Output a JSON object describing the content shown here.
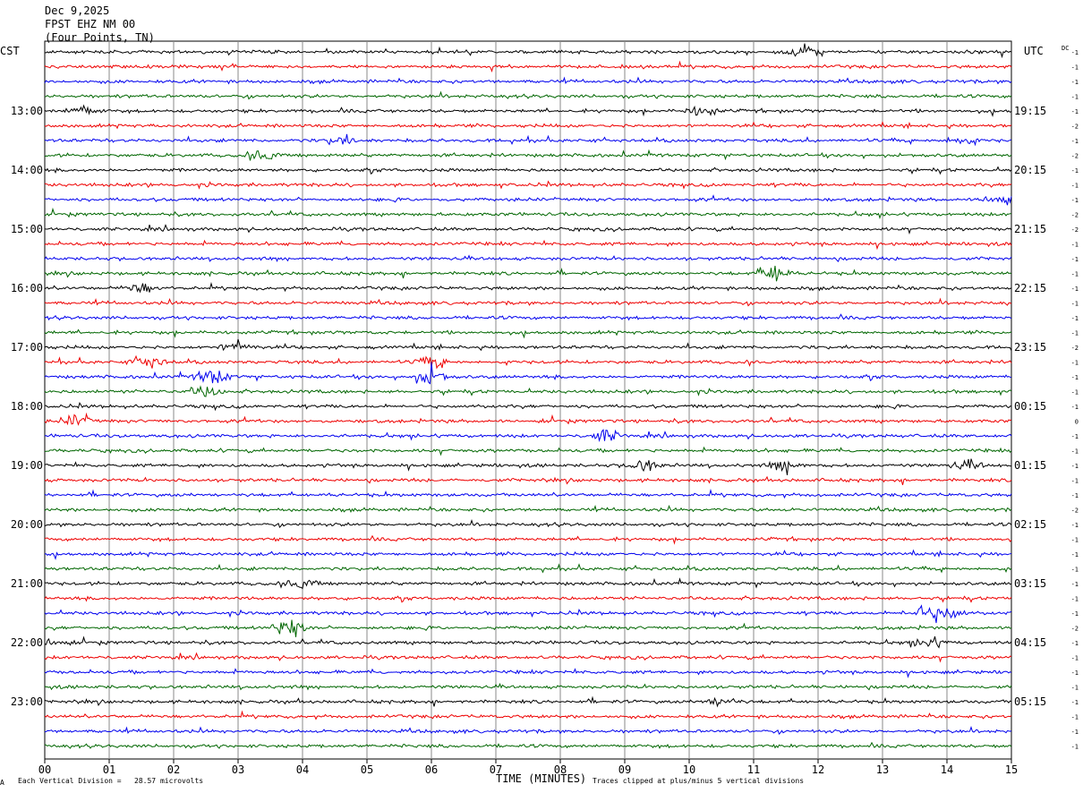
{
  "header": {
    "date": "Dec 9,2025",
    "station": "FPST EHZ NM 00",
    "location": "(Four Points, TN)"
  },
  "left_zone": "CST",
  "right_zone": "UTC",
  "dc_label": "DC",
  "footer": {
    "mark": "A",
    "division_text": "Each Vertical Division =   28.57 microvolts",
    "clip_text": "Traces clipped at plus/minus 5 vertical divisions"
  },
  "chart_data": {
    "type": "helicorder",
    "title": "",
    "xlabel": "TIME (MINUTES)",
    "x_ticks": [
      "00",
      "01",
      "02",
      "03",
      "04",
      "05",
      "06",
      "07",
      "08",
      "09",
      "10",
      "11",
      "12",
      "13",
      "14",
      "15"
    ],
    "xlim": [
      0,
      15
    ],
    "left_hour_labels": [
      "13:00",
      "14:00",
      "15:00",
      "16:00",
      "17:00",
      "18:00",
      "19:00",
      "20:00",
      "21:00",
      "22:00",
      "23:00"
    ],
    "right_hour_labels": [
      "19:15",
      "20:15",
      "21:15",
      "22:15",
      "23:15",
      "00:15",
      "01:15",
      "02:15",
      "03:15",
      "04:15",
      "05:15"
    ],
    "trace_colors": [
      "#000000",
      "#ee0000",
      "#0000ee",
      "#006600"
    ],
    "trace_count": 48,
    "dc_offsets": [
      -1,
      -1,
      -1,
      -1,
      -1,
      -2,
      -1,
      -2,
      -1,
      -1,
      -1,
      -2,
      -2,
      -1,
      -1,
      -1,
      -1,
      -1,
      -1,
      -1,
      -2,
      -1,
      -1,
      -1,
      -1,
      0,
      -1,
      -1,
      -1,
      -1,
      -1,
      -2,
      -1,
      -1,
      -1,
      -1,
      -1,
      -1,
      -1,
      -2,
      -1,
      -1,
      -1,
      -1,
      -1,
      -1,
      -1,
      -1
    ],
    "grid": "vertical minute lines",
    "events": [
      {
        "trace": 0,
        "minute": 11.8,
        "amp": 1.8
      },
      {
        "trace": 4,
        "minute": 0.6,
        "amp": 1.4
      },
      {
        "trace": 4,
        "minute": 10.2,
        "amp": 1.4
      },
      {
        "trace": 6,
        "minute": 4.6,
        "amp": 1.2
      },
      {
        "trace": 6,
        "minute": 14.2,
        "amp": 1.3
      },
      {
        "trace": 7,
        "minute": 3.4,
        "amp": 1.3
      },
      {
        "trace": 10,
        "minute": 14.8,
        "amp": 1.6
      },
      {
        "trace": 15,
        "minute": 11.3,
        "amp": 2.6
      },
      {
        "trace": 16,
        "minute": 1.5,
        "amp": 1.4
      },
      {
        "trace": 20,
        "minute": 3.0,
        "amp": 1.5
      },
      {
        "trace": 21,
        "minute": 1.6,
        "amp": 1.8
      },
      {
        "trace": 21,
        "minute": 6.0,
        "amp": 1.6
      },
      {
        "trace": 22,
        "minute": 2.6,
        "amp": 2.2
      },
      {
        "trace": 22,
        "minute": 6.0,
        "amp": 2.6
      },
      {
        "trace": 23,
        "minute": 2.5,
        "amp": 1.5
      },
      {
        "trace": 25,
        "minute": 0.5,
        "amp": 1.4
      },
      {
        "trace": 26,
        "minute": 8.7,
        "amp": 1.6
      },
      {
        "trace": 28,
        "minute": 9.3,
        "amp": 1.6
      },
      {
        "trace": 28,
        "minute": 11.5,
        "amp": 1.6
      },
      {
        "trace": 28,
        "minute": 14.3,
        "amp": 1.3
      },
      {
        "trace": 36,
        "minute": 4.0,
        "amp": 1.3
      },
      {
        "trace": 38,
        "minute": 13.6,
        "amp": 1.6
      },
      {
        "trace": 38,
        "minute": 14.0,
        "amp": 2.0
      },
      {
        "trace": 39,
        "minute": 3.8,
        "amp": 2.6
      },
      {
        "trace": 40,
        "minute": 0.1,
        "amp": 1.2
      },
      {
        "trace": 40,
        "minute": 13.7,
        "amp": 1.4
      },
      {
        "trace": 44,
        "minute": 10.5,
        "amp": 1.2
      }
    ]
  }
}
